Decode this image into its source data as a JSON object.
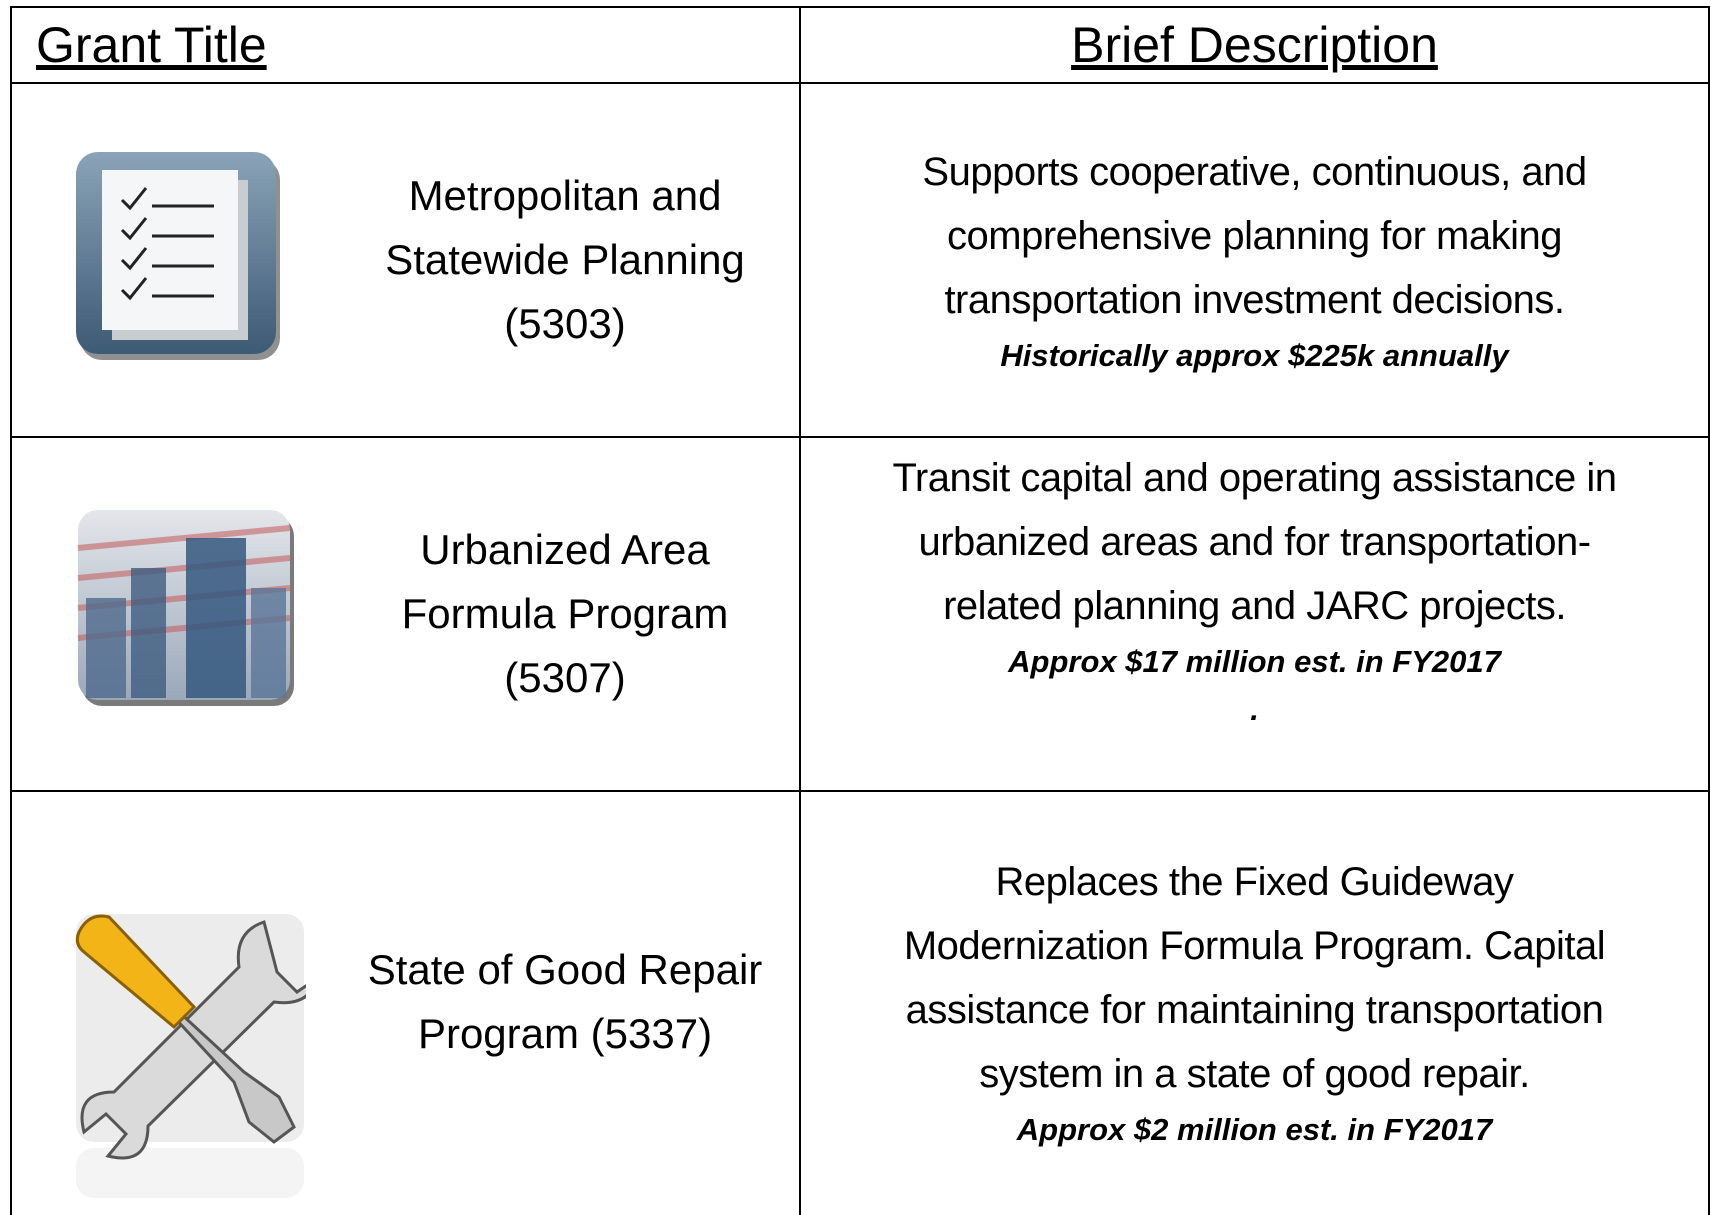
{
  "header": {
    "columns": [
      "Grant Title",
      "Brief Description"
    ]
  },
  "table": {
    "rows": [
      {
        "title": [
          "Metropolitan and",
          "Statewide Planning",
          "(5303)"
        ],
        "description": [
          "Supports cooperative, continuous, and",
          "comprehensive planning for making",
          "transportation investment decisions."
        ],
        "note": "Historically approx $225k annually"
      },
      {
        "title": [
          "Urbanized Area",
          "Formula Program",
          "(5307)"
        ],
        "description": [
          "Transit capital and operating assistance in",
          "urbanized areas and for transportation-",
          "related planning and JARC projects."
        ],
        "note": "Approx $17 million est. in FY2017",
        "trailer": "."
      },
      {
        "title": [
          "State of Good Repair",
          "Program (5337)"
        ],
        "description": [
          "Replaces the Fixed Guideway",
          "Modernization Formula Program. Capital",
          "assistance for maintaining transportation",
          "system in a state of good repair."
        ],
        "note": "Approx $2 million est. in FY2017"
      }
    ]
  }
}
